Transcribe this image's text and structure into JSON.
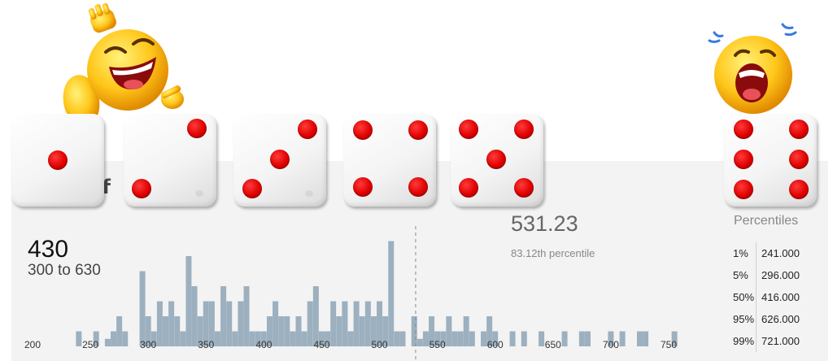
{
  "title_fragment": "g f",
  "dice": [
    {
      "value": 1,
      "name": "die-one"
    },
    {
      "value": 2,
      "name": "die-two"
    },
    {
      "value": 3,
      "name": "die-three"
    },
    {
      "value": 4,
      "name": "die-four"
    },
    {
      "value": 5,
      "name": "die-five"
    },
    {
      "value": 6,
      "name": "die-six"
    }
  ],
  "emojis": {
    "left": "laughing-face-icon",
    "right": "crying-face-icon"
  },
  "summary": {
    "value": "430",
    "range": "300 to 630"
  },
  "marker": {
    "value": "531.23",
    "percentile_text": "83.12th percentile"
  },
  "percentiles": {
    "title": "Percentiles",
    "rows": [
      {
        "p": "1%",
        "v": "241.000"
      },
      {
        "p": "5%",
        "v": "296.000"
      },
      {
        "p": "50%",
        "v": "416.000"
      },
      {
        "p": "95%",
        "v": "626.000"
      },
      {
        "p": "99%",
        "v": "721.000"
      }
    ]
  },
  "colors": {
    "bar": "#9cb0bf",
    "pip": "#e00000",
    "panel": "#f3f3f3"
  },
  "chart_data": {
    "type": "bar",
    "x_ticks": [
      200,
      250,
      300,
      350,
      400,
      450,
      500,
      550,
      600,
      650,
      700,
      750
    ],
    "xlim": [
      190,
      785
    ],
    "marker_x": 531.23,
    "bars": [
      {
        "x": 240,
        "h": 1
      },
      {
        "x": 255,
        "h": 1
      },
      {
        "x": 265,
        "h": 0.5
      },
      {
        "x": 270,
        "h": 1
      },
      {
        "x": 275,
        "h": 2
      },
      {
        "x": 280,
        "h": 1
      },
      {
        "x": 295,
        "h": 5
      },
      {
        "x": 300,
        "h": 2
      },
      {
        "x": 305,
        "h": 1
      },
      {
        "x": 310,
        "h": 3
      },
      {
        "x": 315,
        "h": 2
      },
      {
        "x": 320,
        "h": 3
      },
      {
        "x": 325,
        "h": 2
      },
      {
        "x": 330,
        "h": 1
      },
      {
        "x": 335,
        "h": 6
      },
      {
        "x": 340,
        "h": 4
      },
      {
        "x": 345,
        "h": 2
      },
      {
        "x": 350,
        "h": 3
      },
      {
        "x": 355,
        "h": 3
      },
      {
        "x": 360,
        "h": 1
      },
      {
        "x": 365,
        "h": 4
      },
      {
        "x": 370,
        "h": 3
      },
      {
        "x": 375,
        "h": 1
      },
      {
        "x": 380,
        "h": 3
      },
      {
        "x": 385,
        "h": 4
      },
      {
        "x": 390,
        "h": 1
      },
      {
        "x": 395,
        "h": 1
      },
      {
        "x": 400,
        "h": 1
      },
      {
        "x": 405,
        "h": 2
      },
      {
        "x": 410,
        "h": 3
      },
      {
        "x": 415,
        "h": 2
      },
      {
        "x": 420,
        "h": 2
      },
      {
        "x": 425,
        "h": 1
      },
      {
        "x": 430,
        "h": 2
      },
      {
        "x": 435,
        "h": 1
      },
      {
        "x": 440,
        "h": 3
      },
      {
        "x": 445,
        "h": 4
      },
      {
        "x": 450,
        "h": 1
      },
      {
        "x": 455,
        "h": 1
      },
      {
        "x": 460,
        "h": 3
      },
      {
        "x": 465,
        "h": 2
      },
      {
        "x": 470,
        "h": 3
      },
      {
        "x": 475,
        "h": 1
      },
      {
        "x": 480,
        "h": 3
      },
      {
        "x": 485,
        "h": 2
      },
      {
        "x": 490,
        "h": 3
      },
      {
        "x": 495,
        "h": 2
      },
      {
        "x": 500,
        "h": 3
      },
      {
        "x": 505,
        "h": 2
      },
      {
        "x": 510,
        "h": 7
      },
      {
        "x": 515,
        "h": 1
      },
      {
        "x": 520,
        "h": 1
      },
      {
        "x": 530,
        "h": 2
      },
      {
        "x": 535,
        "h": 0.5
      },
      {
        "x": 540,
        "h": 1
      },
      {
        "x": 545,
        "h": 2
      },
      {
        "x": 550,
        "h": 1
      },
      {
        "x": 555,
        "h": 1
      },
      {
        "x": 560,
        "h": 2
      },
      {
        "x": 565,
        "h": 1
      },
      {
        "x": 570,
        "h": 1
      },
      {
        "x": 575,
        "h": 2
      },
      {
        "x": 580,
        "h": 1
      },
      {
        "x": 590,
        "h": 1
      },
      {
        "x": 595,
        "h": 2
      },
      {
        "x": 600,
        "h": 1
      },
      {
        "x": 615,
        "h": 1
      },
      {
        "x": 625,
        "h": 1
      },
      {
        "x": 640,
        "h": 1
      },
      {
        "x": 660,
        "h": 1
      },
      {
        "x": 675,
        "h": 1
      },
      {
        "x": 680,
        "h": 1
      },
      {
        "x": 700,
        "h": 1
      },
      {
        "x": 710,
        "h": 1
      },
      {
        "x": 725,
        "h": 1
      },
      {
        "x": 730,
        "h": 1
      },
      {
        "x": 755,
        "h": 1
      }
    ]
  }
}
